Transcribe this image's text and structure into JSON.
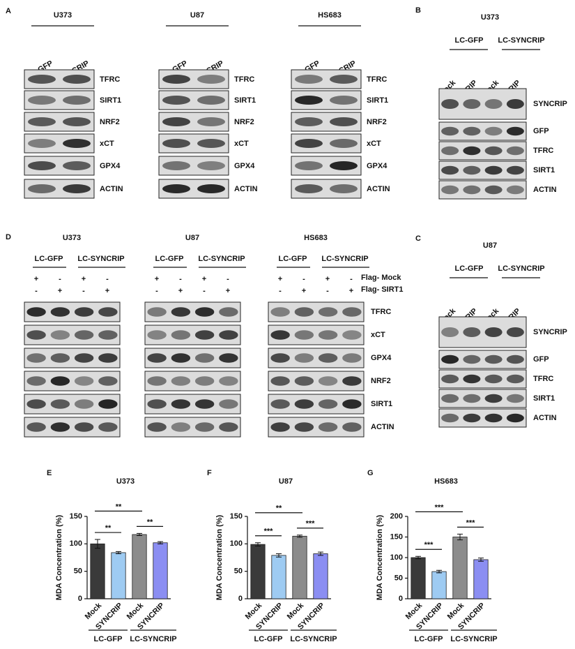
{
  "panel_A": {
    "letter": "A",
    "cells": [
      "U373",
      "U87",
      "HS683"
    ],
    "lanes": [
      "LC-GFP",
      "LC-SYNCRIP"
    ],
    "proteins": [
      "TFRC",
      "SIRT1",
      "NRF2",
      "xCT",
      "GPX4",
      "ACTIN"
    ]
  },
  "panel_B": {
    "letter": "B",
    "cell": "U373",
    "groups": [
      "LC-GFP",
      "LC-SYNCRIP"
    ],
    "lanes": [
      "Mock",
      "SYNCRIP",
      "Mock",
      "SYNCRIP"
    ],
    "proteins": [
      "SYNCRIP",
      "GFP",
      "TFRC",
      "SIRT1",
      "ACTIN"
    ]
  },
  "panel_C": {
    "letter": "C",
    "cell": "U87",
    "groups": [
      "LC-GFP",
      "LC-SYNCRIP"
    ],
    "lanes": [
      "Mock",
      "SYNCRIP",
      "Mock",
      "SYNCRIP"
    ],
    "proteins": [
      "SYNCRIP",
      "GFP",
      "TFRC",
      "SIRT1",
      "ACTIN"
    ]
  },
  "panel_D": {
    "letter": "D",
    "cells": [
      "U373",
      "U87",
      "HS683"
    ],
    "groups": [
      "LC-GFP",
      "LC-SYNCRIP"
    ],
    "treatments": [
      {
        "label": "Flag- Mock",
        "signs": [
          "+",
          "-",
          "+",
          "-"
        ]
      },
      {
        "label": "Flag- SIRT1",
        "signs": [
          "-",
          "+",
          "-",
          "+"
        ]
      }
    ],
    "proteins": [
      "TFRC",
      "xCT",
      "GPX4",
      "NRF2",
      "SIRT1",
      "ACTIN"
    ]
  },
  "chart_data": [
    {
      "type": "bar",
      "letter": "E",
      "title": "U373",
      "ylabel": "MDA Concentration (%)",
      "categories": [
        "Mock",
        "SYNCRIP",
        "Mock",
        "SYNCRIP"
      ],
      "groups": [
        "LC-GFP",
        "LC-SYNCRIP"
      ],
      "values": [
        100,
        84,
        117,
        102
      ],
      "errors": [
        8,
        2,
        2,
        2
      ],
      "colors": [
        "#3a3a3a",
        "#9ecbf2",
        "#8c8c8c",
        "#8b8ef2"
      ],
      "ylim": [
        0,
        150
      ],
      "yticks": [
        0,
        50,
        100,
        150
      ],
      "significance": [
        "**",
        "**",
        "**"
      ]
    },
    {
      "type": "bar",
      "letter": "F",
      "title": "U87",
      "ylabel": "MDA Concentration (%)",
      "categories": [
        "Mock",
        "SYNCRIP",
        "Mock",
        "SYNCRIP"
      ],
      "groups": [
        "LC-GFP",
        "LC-SYNCRIP"
      ],
      "values": [
        99,
        79,
        114,
        82
      ],
      "errors": [
        3,
        3,
        2,
        3
      ],
      "colors": [
        "#3a3a3a",
        "#9ecbf2",
        "#8c8c8c",
        "#8b8ef2"
      ],
      "ylim": [
        0,
        150
      ],
      "yticks": [
        0,
        50,
        100,
        150
      ],
      "significance": [
        "***",
        "**",
        "***"
      ]
    },
    {
      "type": "bar",
      "letter": "G",
      "title": "HS683",
      "ylabel": "MDA Concentration (%)",
      "categories": [
        "Mock",
        "SYNCRIP",
        "Mock",
        "SYNCRIP"
      ],
      "groups": [
        "LC-GFP",
        "LC-SYNCRIP"
      ],
      "values": [
        100,
        66,
        150,
        95
      ],
      "errors": [
        3,
        3,
        7,
        4
      ],
      "colors": [
        "#3a3a3a",
        "#9ecbf2",
        "#8c8c8c",
        "#8b8ef2"
      ],
      "ylim": [
        0,
        200
      ],
      "yticks": [
        0,
        50,
        100,
        150,
        200
      ],
      "significance": [
        "***",
        "***",
        "***"
      ]
    }
  ]
}
